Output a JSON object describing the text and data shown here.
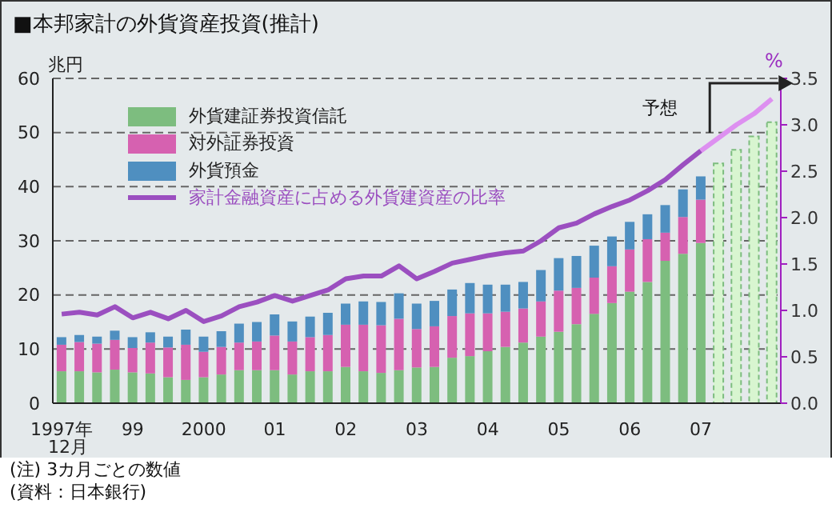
{
  "chart_data": {
    "type": "bar",
    "title": "■本邦家計の外貨資産投資(推計)",
    "ylabel": "兆円",
    "y2label": "%",
    "annotations": [
      "予想",
      "(注) 3カ月ごとの数値",
      "(資料：日本銀行)"
    ],
    "categories": [
      "1997年\n12月",
      null,
      null,
      null,
      "99",
      null,
      null,
      null,
      "2000",
      null,
      null,
      null,
      "01",
      null,
      null,
      null,
      "02",
      null,
      null,
      null,
      "03",
      null,
      null,
      null,
      "04",
      null,
      null,
      null,
      "05",
      null,
      null,
      null,
      "06",
      null,
      null,
      null,
      "07",
      null,
      null,
      null,
      null
    ],
    "stacked": true,
    "ylim": [
      0,
      60
    ],
    "yticks": [
      0,
      10,
      20,
      30,
      40,
      50,
      60
    ],
    "y2lim": [
      0,
      3.5
    ],
    "y2ticks": [
      {
        "value": 0,
        "label": "0.0"
      },
      0.5,
      {
        "value": 1,
        "label": "1.0"
      },
      1.5,
      {
        "value": 2,
        "label": "2.0"
      },
      2.5,
      {
        "value": 3,
        "label": "3.0"
      },
      3.5
    ],
    "grid": "y",
    "legend": "top left",
    "series": [
      {
        "name": "外貨建証券投資信託",
        "color": "#7dbd7f",
        "values": [
          5.9,
          5.9,
          5.7,
          6.2,
          5.7,
          5.5,
          4.8,
          4.3,
          4.8,
          5.3,
          6.1,
          6.1,
          6.1,
          5.3,
          5.9,
          5.9,
          6.7,
          5.9,
          5.6,
          6.1,
          6.6,
          6.7,
          8.4,
          8.7,
          9.6,
          10.4,
          11.2,
          12.3,
          13.2,
          14.6,
          16.5,
          18.5,
          20.6,
          22.4,
          26.3,
          27.6,
          29.6,
          null,
          null,
          null,
          null
        ]
      },
      {
        "name": "対外証券投資",
        "color": "#d661b0",
        "values": [
          4.9,
          5.4,
          5.3,
          5.5,
          4.5,
          5.7,
          5.5,
          6.5,
          4.7,
          5.1,
          5.1,
          5.3,
          6.4,
          6.1,
          6.3,
          6.7,
          7.8,
          8.6,
          8.8,
          9.5,
          7.1,
          7.5,
          7.7,
          7.9,
          7.0,
          6.5,
          6.3,
          6.5,
          7.6,
          6.7,
          6.7,
          6.8,
          7.8,
          7.9,
          5.2,
          6.8,
          8.0,
          null,
          null,
          null,
          null
        ]
      },
      {
        "name": "外貨預金",
        "color": "#4f8fc0",
        "values": [
          1.4,
          1.3,
          1.3,
          1.7,
          2.0,
          1.9,
          2.0,
          2.8,
          2.8,
          2.9,
          3.5,
          3.6,
          3.9,
          3.7,
          3.8,
          4.1,
          3.9,
          4.3,
          4.3,
          4.7,
          4.7,
          4.7,
          4.9,
          5.6,
          5.3,
          5.0,
          4.9,
          5.8,
          6.0,
          5.9,
          5.9,
          5.5,
          5.1,
          4.6,
          5.1,
          5.1,
          4.3,
          null,
          null,
          null,
          null
        ]
      },
      {
        "color": "#d8f5d0",
        "line_style": "dashed",
        "values": [
          null,
          null,
          null,
          null,
          null,
          null,
          null,
          null,
          null,
          null,
          null,
          null,
          null,
          null,
          null,
          null,
          null,
          null,
          null,
          null,
          null,
          null,
          null,
          null,
          null,
          null,
          null,
          null,
          null,
          null,
          null,
          null,
          null,
          null,
          null,
          null,
          null,
          44.3,
          46.8,
          49.3,
          51.9
        ]
      },
      {
        "name": "家計金融資産に占める外貨建資産の比率",
        "type": "line",
        "axis": "y2",
        "color": "#9b4fc0",
        "values": [
          0.96,
          0.98,
          0.95,
          1.04,
          0.92,
          0.98,
          0.91,
          1.0,
          0.88,
          0.94,
          1.04,
          1.09,
          1.16,
          1.1,
          1.16,
          1.22,
          1.34,
          1.37,
          1.37,
          1.48,
          1.34,
          1.42,
          1.51,
          1.55,
          1.59,
          1.62,
          1.64,
          1.75,
          1.89,
          1.94,
          2.04,
          2.12,
          2.19,
          2.29,
          2.41,
          2.57,
          2.72,
          null,
          null,
          null,
          null
        ]
      },
      {
        "type": "line",
        "axis": "y2",
        "color": "#dd90f0",
        "values": [
          null,
          null,
          null,
          null,
          null,
          null,
          null,
          null,
          null,
          null,
          null,
          null,
          null,
          null,
          null,
          null,
          null,
          null,
          null,
          null,
          null,
          null,
          null,
          null,
          null,
          null,
          null,
          null,
          null,
          null,
          null,
          null,
          null,
          null,
          null,
          null,
          2.72,
          2.86,
          3.0,
          3.12,
          3.28
        ]
      }
    ]
  }
}
